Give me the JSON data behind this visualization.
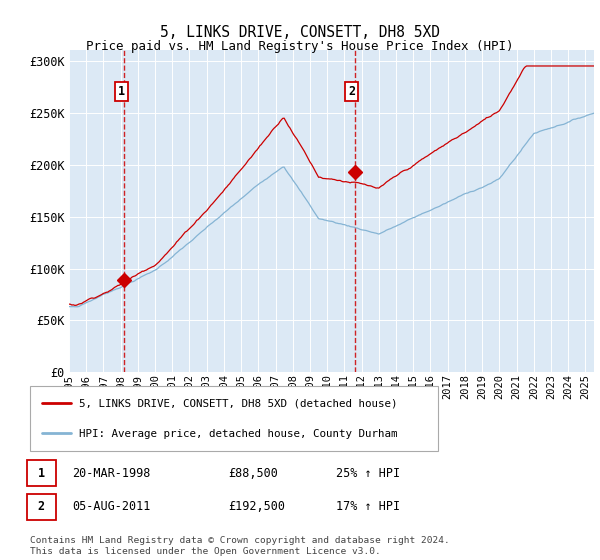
{
  "title": "5, LINKS DRIVE, CONSETT, DH8 5XD",
  "subtitle": "Price paid vs. HM Land Registry's House Price Index (HPI)",
  "ylabel_ticks": [
    "£0",
    "£50K",
    "£100K",
    "£150K",
    "£200K",
    "£250K",
    "£300K"
  ],
  "ytick_values": [
    0,
    50000,
    100000,
    150000,
    200000,
    250000,
    300000
  ],
  "ylim": [
    0,
    310000
  ],
  "xlim_start": 1995.0,
  "xlim_end": 2025.5,
  "background_color": "#dce9f5",
  "grid_color": "#ffffff",
  "sale1_date": 1998.22,
  "sale1_price": 88500,
  "sale2_date": 2011.59,
  "sale2_price": 192500,
  "red_line_color": "#cc0000",
  "blue_line_color": "#85b4d4",
  "vline_color": "#cc0000",
  "legend_label_red": "5, LINKS DRIVE, CONSETT, DH8 5XD (detached house)",
  "legend_label_blue": "HPI: Average price, detached house, County Durham",
  "annotation1_label": "1",
  "annotation2_label": "2",
  "table_row1": [
    "1",
    "20-MAR-1998",
    "£88,500",
    "25% ↑ HPI"
  ],
  "table_row2": [
    "2",
    "05-AUG-2011",
    "£192,500",
    "17% ↑ HPI"
  ],
  "footer": "Contains HM Land Registry data © Crown copyright and database right 2024.\nThis data is licensed under the Open Government Licence v3.0.",
  "xticks": [
    1995,
    1996,
    1997,
    1998,
    1999,
    2000,
    2001,
    2002,
    2003,
    2004,
    2005,
    2006,
    2007,
    2008,
    2009,
    2010,
    2011,
    2012,
    2013,
    2014,
    2015,
    2016,
    2017,
    2018,
    2019,
    2020,
    2021,
    2022,
    2023,
    2024,
    2025
  ]
}
